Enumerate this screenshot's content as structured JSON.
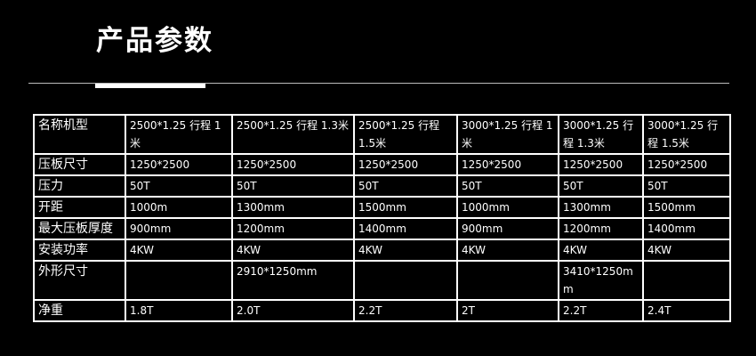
{
  "title": "产品参数",
  "table": {
    "rows": [
      [
        "名称机型",
        "2500*1.25 行程 1米",
        "2500*1.25 行程 1.3米",
        "2500*1.25 行程 1.5米",
        "3000*1.25 行程 1米",
        "3000*1.25 行程 1.3米",
        "3000*1.25 行程 1.5米"
      ],
      [
        "压板尺寸",
        "1250*2500",
        "1250*2500",
        "1250*2500",
        "1250*2500",
        "1250*2500",
        "1250*2500"
      ],
      [
        "压力",
        "50T",
        "50T",
        "50T",
        "50T",
        "50T",
        "50T"
      ],
      [
        "开距",
        "1000m",
        "1300mm",
        "1500mm",
        "1000mm",
        "1300mm",
        "1500mm"
      ],
      [
        "最大压板厚度",
        "900mm",
        "1200mm",
        "1400mm",
        "900mm",
        "1200mm",
        "1400mm"
      ],
      [
        "安装功率",
        "4KW",
        "4KW",
        "4KW",
        "4KW",
        "4KW",
        "4KW"
      ],
      [
        "外形尺寸",
        "",
        "2910*1250mm",
        "",
        "",
        "3410*1250mm",
        ""
      ],
      [
        "净重",
        "1.8T",
        "2.0T",
        "2.2T",
        "2T",
        "2.2T",
        "2.4T"
      ]
    ]
  }
}
